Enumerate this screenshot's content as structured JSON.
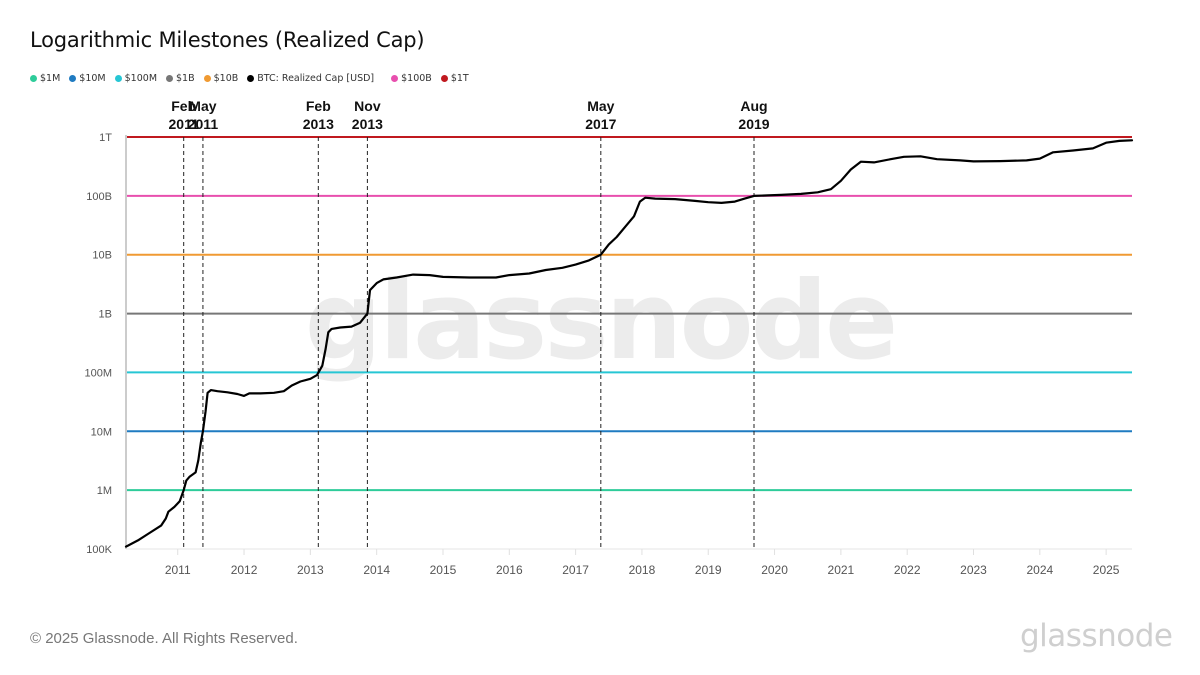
{
  "header": {
    "title": "Logarithmic Milestones (Realized Cap)"
  },
  "legend": [
    {
      "label": "$1M",
      "color": "#2ecc9a"
    },
    {
      "label": "$10M",
      "color": "#1f7bc1"
    },
    {
      "label": "$100M",
      "color": "#26c6d4"
    },
    {
      "label": "$1B",
      "color": "#777777"
    },
    {
      "label": "$10B",
      "color": "#f09a32"
    },
    {
      "label": "BTC: Realized Cap [USD]",
      "color": "#000000"
    },
    {
      "label": "$100B",
      "color": "#e84fae"
    },
    {
      "label": "$1T",
      "color": "#c0191f"
    }
  ],
  "footer": {
    "copyright": "© 2025 Glassnode. All Rights Reserved.",
    "brand": "glassnode"
  },
  "watermark": "glassnode",
  "chart_data": {
    "type": "line",
    "title": "Logarithmic Milestones (Realized Cap)",
    "xlabel": "",
    "ylabel": "",
    "yscale": "log",
    "ylim": [
      100000,
      1000000000000
    ],
    "xlim": [
      2010.22,
      2025.39
    ],
    "grid": false,
    "legend_position": "top-left",
    "y_ticks": [
      {
        "value": 100000,
        "label": "100K"
      },
      {
        "value": 1000000,
        "label": "1M"
      },
      {
        "value": 10000000,
        "label": "10M"
      },
      {
        "value": 100000000,
        "label": "100M"
      },
      {
        "value": 1000000000,
        "label": "1B"
      },
      {
        "value": 10000000000,
        "label": "10B"
      },
      {
        "value": 100000000000,
        "label": "100B"
      },
      {
        "value": 1000000000000,
        "label": "1T"
      }
    ],
    "x_ticks": [
      {
        "value": 2011,
        "label": "2011"
      },
      {
        "value": 2012,
        "label": "2012"
      },
      {
        "value": 2013,
        "label": "2013"
      },
      {
        "value": 2014,
        "label": "2014"
      },
      {
        "value": 2015,
        "label": "2015"
      },
      {
        "value": 2016,
        "label": "2016"
      },
      {
        "value": 2017,
        "label": "2017"
      },
      {
        "value": 2018,
        "label": "2018"
      },
      {
        "value": 2019,
        "label": "2019"
      },
      {
        "value": 2020,
        "label": "2020"
      },
      {
        "value": 2021,
        "label": "2021"
      },
      {
        "value": 2022,
        "label": "2022"
      },
      {
        "value": 2023,
        "label": "2023"
      },
      {
        "value": 2024,
        "label": "2024"
      },
      {
        "value": 2025,
        "label": "2025"
      }
    ],
    "thresholds": [
      {
        "name": "$1M",
        "value": 1000000,
        "color": "#2ecc9a"
      },
      {
        "name": "$10M",
        "value": 10000000,
        "color": "#1f7bc1"
      },
      {
        "name": "$100M",
        "value": 100000000,
        "color": "#26c6d4"
      },
      {
        "name": "$1B",
        "value": 1000000000,
        "color": "#777777"
      },
      {
        "name": "$10B",
        "value": 10000000000,
        "color": "#f09a32"
      },
      {
        "name": "$100B",
        "value": 100000000000,
        "color": "#e84fae"
      },
      {
        "name": "$1T",
        "value": 1000000000000,
        "color": "#c0191f"
      }
    ],
    "annotations": [
      {
        "line1": "Feb",
        "line2": "2011",
        "x": 2011.09
      },
      {
        "line1": "May",
        "line2": "2011",
        "x": 2011.38
      },
      {
        "line1": "Feb",
        "line2": "2013",
        "x": 2013.12
      },
      {
        "line1": "Nov",
        "line2": "2013",
        "x": 2013.86
      },
      {
        "line1": "May",
        "line2": "2017",
        "x": 2017.38
      },
      {
        "line1": "Aug",
        "line2": "2019",
        "x": 2019.69
      }
    ],
    "series": [
      {
        "name": "BTC: Realized Cap [USD]",
        "color": "#000000",
        "points": [
          [
            2010.22,
            110000
          ],
          [
            2010.4,
            140000
          ],
          [
            2010.55,
            180000
          ],
          [
            2010.75,
            250000
          ],
          [
            2010.82,
            330000
          ],
          [
            2010.86,
            430000
          ],
          [
            2010.95,
            520000
          ],
          [
            2011.03,
            650000
          ],
          [
            2011.09,
            1000000
          ],
          [
            2011.13,
            1450000
          ],
          [
            2011.18,
            1700000
          ],
          [
            2011.27,
            2000000
          ],
          [
            2011.31,
            3200000
          ],
          [
            2011.35,
            6500000
          ],
          [
            2011.38,
            10000000
          ],
          [
            2011.42,
            22000000
          ],
          [
            2011.45,
            45000000
          ],
          [
            2011.5,
            50000000
          ],
          [
            2011.6,
            48000000
          ],
          [
            2011.75,
            46000000
          ],
          [
            2011.9,
            43000000
          ],
          [
            2012.0,
            40000000
          ],
          [
            2012.08,
            44000000
          ],
          [
            2012.25,
            44000000
          ],
          [
            2012.45,
            45000000
          ],
          [
            2012.6,
            48000000
          ],
          [
            2012.72,
            60000000
          ],
          [
            2012.85,
            70000000
          ],
          [
            2013.0,
            78000000
          ],
          [
            2013.1,
            90000000
          ],
          [
            2013.18,
            130000000
          ],
          [
            2013.23,
            250000000
          ],
          [
            2013.27,
            480000000
          ],
          [
            2013.32,
            550000000
          ],
          [
            2013.45,
            580000000
          ],
          [
            2013.62,
            600000000
          ],
          [
            2013.75,
            700000000
          ],
          [
            2013.86,
            1000000000
          ],
          [
            2013.9,
            2500000000
          ],
          [
            2014.0,
            3300000000
          ],
          [
            2014.1,
            3800000000
          ],
          [
            2014.3,
            4100000000
          ],
          [
            2014.55,
            4600000000
          ],
          [
            2014.8,
            4500000000
          ],
          [
            2015.0,
            4200000000
          ],
          [
            2015.4,
            4100000000
          ],
          [
            2015.8,
            4100000000
          ],
          [
            2016.0,
            4500000000
          ],
          [
            2016.3,
            4800000000
          ],
          [
            2016.55,
            5500000000
          ],
          [
            2016.8,
            6000000000
          ],
          [
            2017.0,
            6800000000
          ],
          [
            2017.2,
            8000000000
          ],
          [
            2017.38,
            10000000000
          ],
          [
            2017.5,
            15000000000
          ],
          [
            2017.62,
            20000000000
          ],
          [
            2017.75,
            30000000000
          ],
          [
            2017.88,
            45000000000
          ],
          [
            2017.97,
            80000000000
          ],
          [
            2018.05,
            93000000000
          ],
          [
            2018.2,
            90000000000
          ],
          [
            2018.5,
            88000000000
          ],
          [
            2018.8,
            82000000000
          ],
          [
            2019.0,
            78000000000
          ],
          [
            2019.2,
            76000000000
          ],
          [
            2019.4,
            80000000000
          ],
          [
            2019.55,
            90000000000
          ],
          [
            2019.69,
            100000000000
          ],
          [
            2019.9,
            102000000000
          ],
          [
            2020.1,
            104000000000
          ],
          [
            2020.4,
            108000000000
          ],
          [
            2020.65,
            115000000000
          ],
          [
            2020.85,
            130000000000
          ],
          [
            2021.0,
            180000000000
          ],
          [
            2021.15,
            280000000000
          ],
          [
            2021.3,
            380000000000
          ],
          [
            2021.5,
            370000000000
          ],
          [
            2021.75,
            420000000000
          ],
          [
            2021.95,
            460000000000
          ],
          [
            2022.2,
            470000000000
          ],
          [
            2022.45,
            420000000000
          ],
          [
            2022.8,
            400000000000
          ],
          [
            2023.0,
            385000000000
          ],
          [
            2023.4,
            390000000000
          ],
          [
            2023.8,
            400000000000
          ],
          [
            2024.0,
            430000000000
          ],
          [
            2024.2,
            550000000000
          ],
          [
            2024.5,
            590000000000
          ],
          [
            2024.8,
            640000000000
          ],
          [
            2025.0,
            800000000000
          ],
          [
            2025.2,
            860000000000
          ],
          [
            2025.39,
            880000000000
          ]
        ]
      }
    ]
  }
}
